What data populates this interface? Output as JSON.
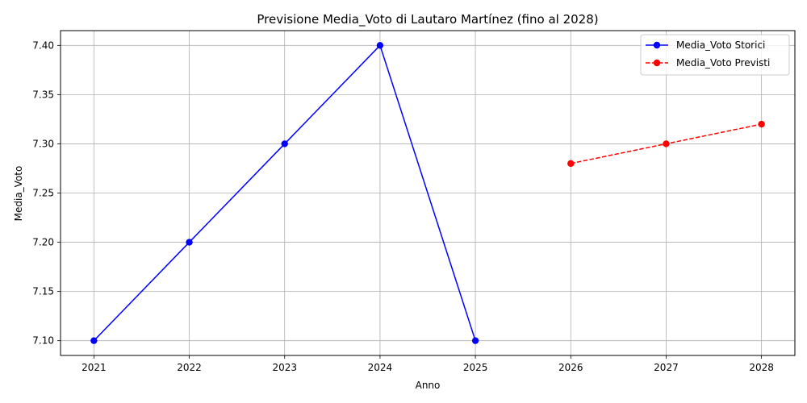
{
  "chart_data": {
    "type": "line",
    "title": "Previsione Media_Voto di Lautaro Martínez (fino al 2028)",
    "xlabel": "Anno",
    "ylabel": "Media_Voto",
    "x_ticks": [
      2021,
      2022,
      2023,
      2024,
      2025,
      2026,
      2027,
      2028
    ],
    "y_ticks": [
      "7.10",
      "7.15",
      "7.20",
      "7.25",
      "7.30",
      "7.35",
      "7.40"
    ],
    "xlim": [
      2020.65,
      2028.35
    ],
    "ylim": [
      7.085,
      7.415
    ],
    "grid": true,
    "legend_position": "top-right",
    "series": [
      {
        "name": "Media_Voto Storici",
        "color": "#0000ff",
        "line_style": "solid",
        "marker": "circle",
        "x": [
          2021,
          2022,
          2023,
          2024,
          2025
        ],
        "y": [
          7.1,
          7.2,
          7.3,
          7.4,
          7.1
        ]
      },
      {
        "name": "Media_Voto Previsti",
        "color": "#ff0000",
        "line_style": "dashed",
        "marker": "circle",
        "x": [
          2026,
          2027,
          2028
        ],
        "y": [
          7.28,
          7.3,
          7.32
        ]
      }
    ]
  }
}
